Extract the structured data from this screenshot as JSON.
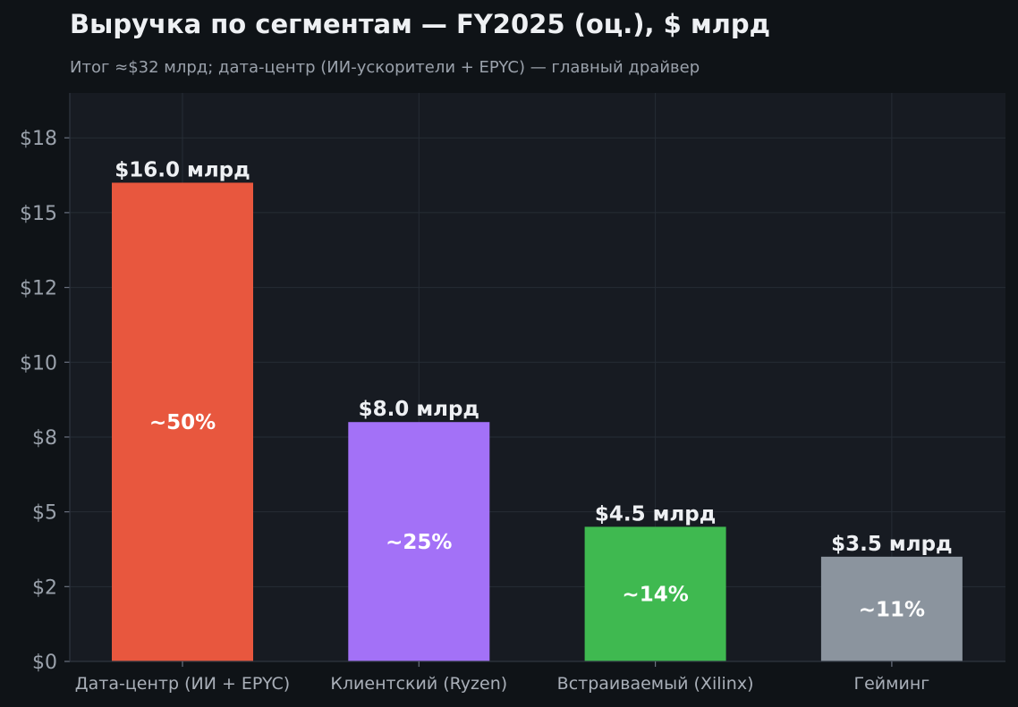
{
  "chart_data": {
    "type": "bar",
    "title": "Выручка по сегментам — FY2025 (оц.), $ млрд",
    "subtitle": "Итог ≈$32 млрд; дата-центр (ИИ-ускорители + EPYC) — главный драйвер",
    "xlabel": "",
    "ylabel": "",
    "categories": [
      "Дата-центр (ИИ + EPYC)",
      "Клиентский (Ryzen)",
      "Встраиваемый (Xilinx)",
      "Гейминг"
    ],
    "values": [
      16.0,
      8.0,
      4.5,
      3.5
    ],
    "value_labels": [
      "$16.0 млрд",
      "$8.0 млрд",
      "$4.5 млрд",
      "$3.5 млрд"
    ],
    "share_labels": [
      "~50%",
      "~25%",
      "~14%",
      "~11%"
    ],
    "colors": [
      "#e8573e",
      "#a371f7",
      "#3fb950",
      "#8b949e"
    ],
    "ylim": [
      0,
      19
    ],
    "yticks": [
      0,
      2.5,
      5,
      7.5,
      10,
      12.5,
      15,
      17.5
    ],
    "ytick_labels": [
      "$0",
      "$2",
      "$5",
      "$8",
      "$10",
      "$12",
      "$15",
      "$18"
    ],
    "grid": true,
    "legend": "none"
  }
}
